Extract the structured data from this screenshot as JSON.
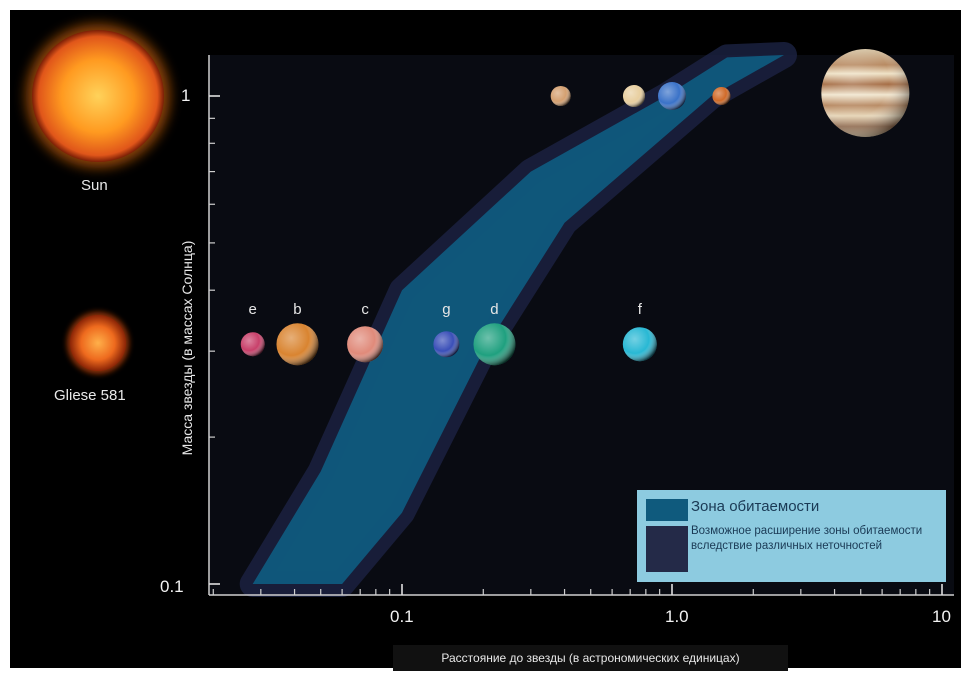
{
  "chart_data": {
    "type": "scatter",
    "x_scale": "log",
    "y_scale": "log",
    "xlim": [
      0.02,
      10
    ],
    "ylim": [
      0.1,
      1.25
    ],
    "xticks": [
      0.1,
      1.0,
      10
    ],
    "xtick_labels": [
      "0.1",
      "1.0",
      "10"
    ],
    "yticks": [
      0.1,
      1
    ],
    "ytick_labels": [
      "0.1",
      "1"
    ],
    "ylabel": "Масса звезды (в массах Солнца)",
    "xlabel": "Расстояние до звезды (в астрономических единицах)",
    "grid": false,
    "legend": {
      "placement": "bottom-right",
      "entries": [
        {
          "label": "Зона обитаемости",
          "color": "#0f5a7d"
        },
        {
          "label": "Возможное расширение зоны обитаемости вследствие различных неточностей",
          "color": "#242a48"
        }
      ]
    },
    "habitable_zone": {
      "inner_edge": [
        [
          0.028,
          0.1
        ],
        [
          0.05,
          0.17
        ],
        [
          0.1,
          0.4
        ],
        [
          0.3,
          0.7
        ],
        [
          0.95,
          1.0
        ],
        [
          1.6,
          1.2
        ]
      ],
      "outer_edge": [
        [
          0.06,
          0.1
        ],
        [
          0.1,
          0.14
        ],
        [
          0.2,
          0.3
        ],
        [
          0.4,
          0.55
        ],
        [
          1.4,
          1.0
        ],
        [
          2.6,
          1.25
        ]
      ]
    },
    "series": [
      {
        "points": [
          {
            "label": "e",
            "x": 0.028,
            "y": 0.31,
            "color": "#c8406a"
          },
          {
            "label": "b",
            "x": 0.041,
            "y": 0.31,
            "color": "#d98430"
          },
          {
            "label": "c",
            "x": 0.073,
            "y": 0.31,
            "color": "#e08a7a"
          },
          {
            "label": "g",
            "x": 0.146,
            "y": 0.31,
            "color": "#3a4fb8"
          },
          {
            "label": "d",
            "x": 0.22,
            "y": 0.31,
            "color": "#1fa07f"
          },
          {
            "label": "f",
            "x": 0.76,
            "y": 0.31,
            "color": "#28b8d4"
          }
        ]
      },
      {
        "points": [
          {
            "x": 0.387,
            "y": 1,
            "color": "#d4a070"
          },
          {
            "x": 0.723,
            "y": 1,
            "color": "#e8cfa0"
          },
          {
            "x": 1.0,
            "y": 1,
            "color": "#3a72c8"
          },
          {
            "x": 1.524,
            "y": 1,
            "color": "#d06a28"
          },
          {
            "x": 5.2,
            "y": 1,
            "color": "#d9b890"
          }
        ]
      }
    ],
    "stars": [
      {
        "label": "Sun",
        "color": "#ff9a20"
      },
      {
        "label": "Gliese 581",
        "color": "#e8561a"
      }
    ]
  }
}
